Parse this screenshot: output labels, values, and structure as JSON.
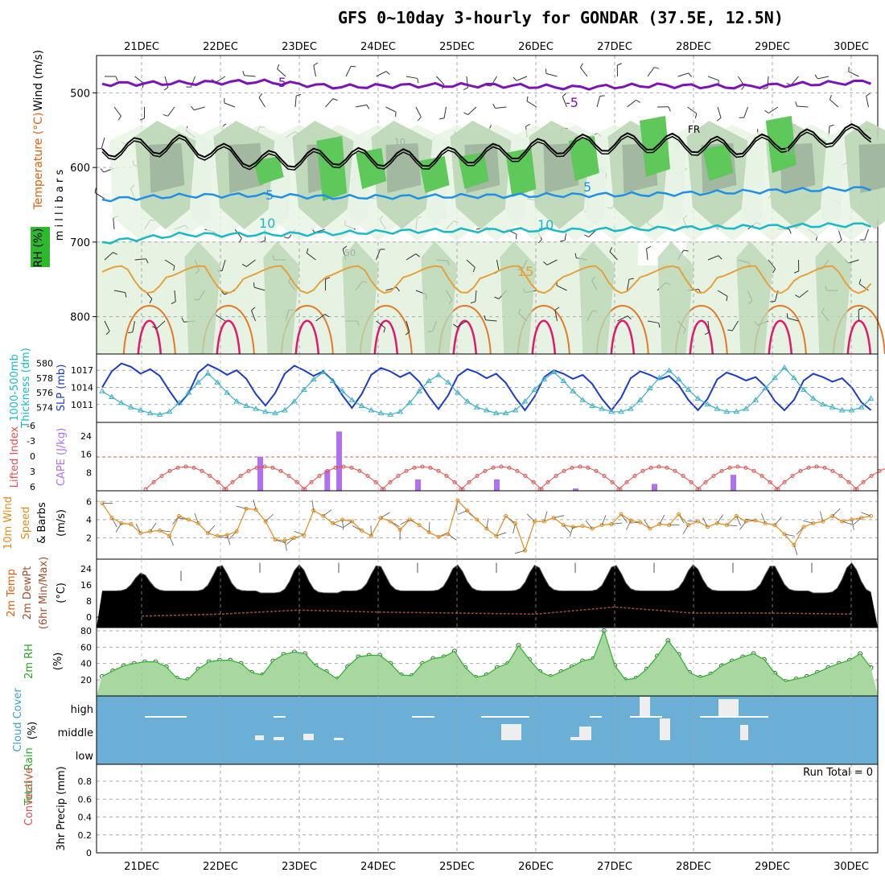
{
  "title": "GFS 0~10day 3-hourly for GONDAR (37.5E, 12.5N)",
  "dates": [
    "21DEC",
    "22DEC",
    "23DEC",
    "24DEC",
    "25DEC",
    "26DEC",
    "27DEC",
    "28DEC",
    "29DEC",
    "30DEC"
  ],
  "chart_data": [
    {
      "panel": "upper-air",
      "type": "heatmap",
      "ylabel": "millibars",
      "left_labels": [
        "Wind (m/s)",
        "Temperature (°C)",
        "RH (%)"
      ],
      "yticks": [
        500,
        600,
        700,
        800
      ],
      "ylim": [
        450,
        850
      ],
      "contour_labels": [
        "-5",
        "-5",
        "5",
        "5",
        "10",
        "10",
        "10",
        "15",
        "FR",
        "10",
        "50"
      ],
      "colors": {
        "minus5": "#7a14b8",
        "freezing": "#000000",
        "plus5": "#1e90e6",
        "plus10": "#19b9c8",
        "plus15": "#e6a03c",
        "warm": "#e2176e",
        "rh_light": "#e6f2e2",
        "rh_mid": "#bcd7b6",
        "rh_dark": "#96aa96",
        "rh_green": "#5ec85a"
      },
      "minus5_level": [
        488,
        487,
        485,
        492,
        490,
        490,
        493,
        490,
        492,
        488
      ],
      "freezing_level": [
        575,
        568,
        590,
        585,
        588,
        580,
        568,
        565,
        572,
        560
      ]
    },
    {
      "panel": "thickness-slp",
      "type": "line",
      "left_labels": [
        "1000-500mb",
        "Thickness (dm)"
      ],
      "right_labels": [
        "SLP (mb)"
      ],
      "yticks_left": [
        574,
        576,
        578,
        580
      ],
      "yticks_right": [
        1011,
        1014,
        1017
      ],
      "series": [
        {
          "name": "SLP",
          "color": "#1c3cc8",
          "values": [
            1014.0,
            1016.8,
            1018.2,
            1017.6,
            1016.4,
            1017.2,
            1016.0,
            1013.4,
            1011.0,
            1013.0,
            1016.6,
            1018.0,
            1017.2,
            1016.2,
            1017.0,
            1015.5,
            1012.8,
            1010.8,
            1013.0,
            1016.4,
            1017.8,
            1017.0,
            1016.0,
            1016.8,
            1015.2,
            1012.6,
            1010.4,
            1012.8,
            1016.2,
            1017.4,
            1016.8,
            1015.8,
            1016.6,
            1015.0,
            1012.4,
            1010.2,
            1012.6,
            1016.0,
            1017.2,
            1016.6,
            1015.6,
            1016.4,
            1014.8,
            1012.2,
            1010.0,
            1012.4,
            1015.8,
            1017.0,
            1016.4,
            1015.5,
            1016.2,
            1014.6,
            1012.0,
            1010.0,
            1012.2,
            1015.6,
            1016.8,
            1016.2,
            1015.4,
            1016.0,
            1014.4,
            1011.8,
            1010.0,
            1012.0,
            1015.4,
            1016.6,
            1016.0,
            1015.2,
            1015.8,
            1014.2,
            1011.6,
            1010.0,
            1011.8,
            1015.2,
            1016.4,
            1015.8,
            1015.0,
            1015.6,
            1014.0,
            1011.4,
            1010.0
          ]
        },
        {
          "name": "Thickness",
          "color": "#3ab0c8",
          "values": [
            576.2,
            575.4,
            574.6,
            574.0,
            573.6,
            573.2,
            573.0,
            573.4,
            574.6,
            576.0,
            577.4,
            578.6,
            577.4,
            576.0,
            574.8,
            574.2,
            573.8,
            573.4,
            573.2,
            573.6,
            574.8,
            576.4,
            577.8,
            578.8,
            577.6,
            576.2,
            575.0,
            574.2,
            573.6,
            573.2,
            573.0,
            573.4,
            574.6,
            576.2,
            577.6,
            578.4,
            577.4,
            576.0,
            574.8,
            574.0,
            573.6,
            573.2,
            573.2,
            573.6,
            574.8,
            576.4,
            577.8,
            578.8,
            577.6,
            576.2,
            575.0,
            574.2,
            573.8,
            573.4,
            573.4,
            573.8,
            575.0,
            576.6,
            578.0,
            579.0,
            577.8,
            576.4,
            575.2,
            574.4,
            573.8,
            573.4,
            573.4,
            573.8,
            575.0,
            576.6,
            578.0,
            579.4,
            578.0,
            576.4,
            575.2,
            574.4,
            574.0,
            573.6,
            573.6,
            574.0,
            575.2
          ]
        }
      ]
    },
    {
      "panel": "lifted-index-cape",
      "type": "bar",
      "left_labels": [
        "Lifted Index"
      ],
      "right_labels": [
        "CAPE (J/kg)"
      ],
      "yticks_left": [
        "-6",
        "-3",
        "0",
        "3",
        "6"
      ],
      "yticks_right": [
        8,
        16,
        24
      ],
      "cape_bars": [
        {
          "day": 22.5,
          "value": 15
        },
        {
          "day": 23.35,
          "value": 9
        },
        {
          "day": 23.5,
          "value": 26
        },
        {
          "day": 24.5,
          "value": 5
        },
        {
          "day": 25.5,
          "value": 5
        },
        {
          "day": 26.5,
          "value": 1
        },
        {
          "day": 27.5,
          "value": 3
        },
        {
          "day": 28.5,
          "value": 7
        }
      ]
    },
    {
      "panel": "10m-wind",
      "type": "line",
      "left_labels": [
        "10m Wind",
        "Speed",
        "& Barbs"
      ],
      "right_labels": [
        "(m/s)"
      ],
      "yticks": [
        2,
        4,
        6
      ],
      "series": [
        {
          "name": "Speed",
          "color": "#e08c1e",
          "values": [
            5.8,
            4.2,
            3.6,
            3.5,
            2.5,
            2.7,
            2.8,
            2.2,
            4.4,
            4.0,
            3.6,
            2.5,
            2.2,
            2.3,
            2.7,
            5.2,
            5.1,
            3.8,
            1.8,
            1.7,
            2.0,
            2.3,
            5.0,
            4.4,
            3.6,
            4.0,
            3.8,
            2.8,
            2.2,
            4.2,
            3.8,
            2.9,
            4.0,
            3.4,
            2.6,
            2.1,
            2.4,
            6.1,
            5.0,
            4.0,
            3.0,
            2.2,
            4.4,
            3.6,
            0.6,
            3.8,
            3.8,
            4.2,
            3.4,
            3.2,
            3.3,
            3.0,
            3.4,
            3.5,
            4.6,
            3.9,
            3.7,
            3.0,
            3.5,
            3.4,
            4.6,
            3.4,
            3.8,
            3.2,
            3.6,
            3.4,
            4.4,
            3.8,
            3.9,
            3.6,
            3.4,
            2.4,
            1.2,
            3.2,
            3.6,
            3.8,
            4.4,
            3.8,
            4.0,
            4.2,
            4.4
          ]
        }
      ]
    },
    {
      "panel": "2m-temp",
      "type": "area",
      "left_labels": [
        "2m Temp",
        "2m DewPt",
        "(6hr Min/Max)"
      ],
      "right_labels": [
        "(°C)"
      ],
      "yticks": [
        0,
        8,
        16,
        24
      ],
      "temp_max": [
        22,
        26,
        26,
        26,
        26,
        26,
        26,
        26,
        26,
        27
      ],
      "temp_min": [
        13,
        13,
        12,
        13,
        13,
        13,
        13,
        13,
        13,
        12
      ],
      "dewpoint": [
        0.5,
        1.5,
        3.5,
        2.5,
        2.0,
        1.5,
        5.0,
        2.0,
        2.0,
        1.5
      ]
    },
    {
      "panel": "2m-rh",
      "type": "area",
      "left_labels": [
        "2m RH"
      ],
      "right_labels": [
        "(%)"
      ],
      "yticks": [
        20,
        40,
        60,
        80
      ],
      "series": [
        {
          "name": "RH",
          "color": "#2ab02a",
          "values": [
            24,
            31,
            37,
            40,
            42,
            42,
            36,
            22,
            20,
            33,
            42,
            44,
            44,
            40,
            29,
            26,
            43,
            51,
            54,
            52,
            37,
            30,
            21,
            36,
            48,
            50,
            50,
            40,
            26,
            25,
            40,
            46,
            48,
            55,
            35,
            23,
            26,
            35,
            40,
            62,
            45,
            30,
            24,
            30,
            36,
            43,
            46,
            80,
            38,
            20,
            22,
            33,
            49,
            68,
            51,
            29,
            23,
            27,
            37,
            43,
            48,
            52,
            45,
            28,
            18,
            21,
            24,
            29,
            35,
            40,
            44,
            52,
            35
          ]
        }
      ]
    },
    {
      "panel": "cloud-cover",
      "type": "bar",
      "left_labels": [
        "Cloud Cover",
        "(%)"
      ],
      "levels": [
        "high",
        "middle",
        "low"
      ]
    },
    {
      "panel": "precip",
      "type": "bar",
      "left_labels": [
        "Total / Rain",
        "Convective",
        "3hr Precip (mm)"
      ],
      "yticks": [
        "0",
        "0.2",
        "0.4",
        "0.6",
        "0.8"
      ],
      "annotation": "Run Total = 0"
    }
  ]
}
